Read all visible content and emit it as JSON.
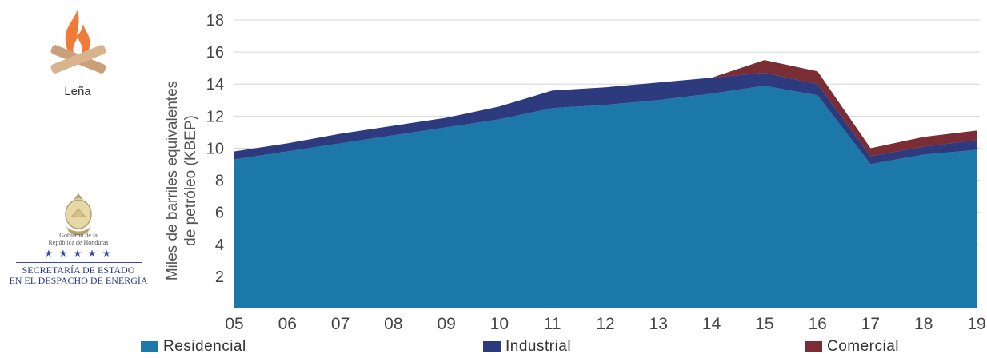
{
  "sidebar": {
    "fire_label": "Leña",
    "gov_line1": "Gobierno de la",
    "gov_line2": "República de Honduras",
    "stars": "★ ★ ★ ★ ★",
    "secretaria_line1": "SECRETARÍA DE ESTADO",
    "secretaria_line2": "EN EL DESPACHO DE ENERGÍA"
  },
  "colors": {
    "residencial": "#1b78a8",
    "industrial": "#2e3a7e",
    "comercial": "#7b2d35",
    "grid": "#d6d6d6",
    "axis_text": "#444444"
  },
  "chart_data": {
    "type": "area",
    "stacked": true,
    "title": "",
    "xlabel": "",
    "ylabel_line1": "Miles de barriles equivalentes",
    "ylabel_line2": "de petróleo (KBEP)",
    "categories": [
      "05",
      "06",
      "07",
      "08",
      "09",
      "10",
      "11",
      "12",
      "13",
      "14",
      "15",
      "16",
      "17",
      "18",
      "19"
    ],
    "yticks": [
      2,
      4,
      6,
      8,
      10,
      12,
      14,
      16,
      18
    ],
    "ylim": [
      0,
      18
    ],
    "grid": true,
    "legend_position": "bottom",
    "series": [
      {
        "name": "Residencial",
        "values": [
          9.3,
          9.8,
          10.3,
          10.8,
          11.3,
          11.8,
          12.5,
          12.7,
          13.0,
          13.4,
          13.9,
          13.3,
          9.0,
          9.6,
          9.9
        ]
      },
      {
        "name": "Industrial",
        "values": [
          0.5,
          0.5,
          0.6,
          0.6,
          0.6,
          0.8,
          1.1,
          1.1,
          1.1,
          1.0,
          0.8,
          0.7,
          0.5,
          0.5,
          0.6
        ]
      },
      {
        "name": "Comercial",
        "values": [
          0.0,
          0.0,
          0.0,
          0.0,
          0.0,
          0.0,
          0.0,
          0.0,
          0.0,
          0.0,
          0.8,
          0.8,
          0.5,
          0.6,
          0.6
        ]
      }
    ]
  }
}
